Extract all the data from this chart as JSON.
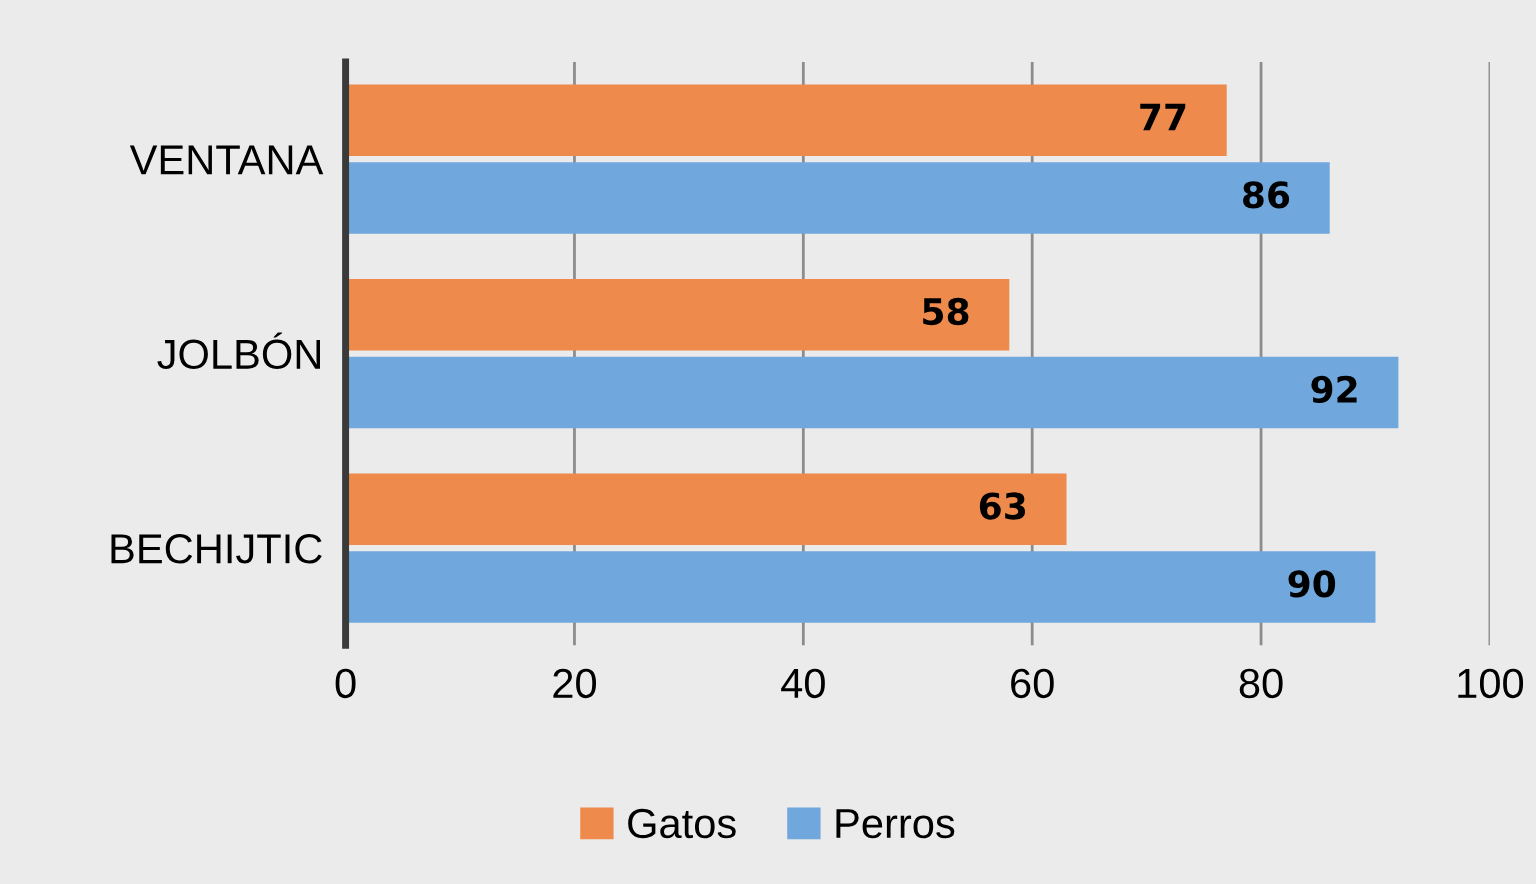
{
  "chart_data": {
    "type": "bar",
    "orientation": "horizontal",
    "categories": [
      "VENTANA",
      "JOLBÓN",
      "BECHIJTIC"
    ],
    "series": [
      {
        "name": "Gatos",
        "color": "#ed8a4c",
        "values": [
          77,
          58,
          63
        ]
      },
      {
        "name": "Perros",
        "color": "#70a7dc",
        "values": [
          86,
          92,
          90
        ]
      }
    ],
    "xlim": [
      0,
      100
    ],
    "xticks": [
      0,
      20,
      40,
      60,
      80,
      100
    ],
    "grid": "x",
    "legend": "bottom",
    "data_labels": true
  }
}
